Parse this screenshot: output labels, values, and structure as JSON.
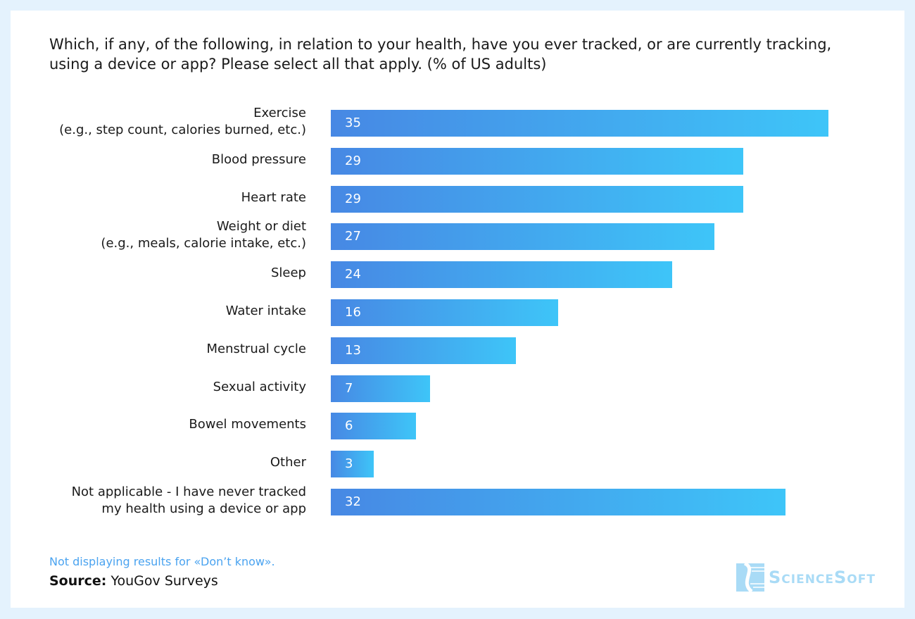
{
  "chart_data": {
    "type": "bar",
    "orientation": "horizontal",
    "title": "Which, if any, of the following, in relation to your health, have you ever tracked, or are currently tracking, using a device or app? Please select all that apply. (% of US adults)",
    "categories": [
      [
        "Exercise",
        "(e.g., step count, calories burned, etc.)"
      ],
      [
        "Blood pressure"
      ],
      [
        "Heart rate"
      ],
      [
        "Weight or diet",
        "(e.g., meals, calorie intake, etc.)"
      ],
      [
        "Sleep"
      ],
      [
        "Water intake"
      ],
      [
        "Menstrual cycle"
      ],
      [
        "Sexual activity"
      ],
      [
        "Bowel movements"
      ],
      [
        "Other"
      ],
      [
        "Not applicable - I have never tracked",
        "my health using a device or app"
      ]
    ],
    "values": [
      35,
      29,
      29,
      27,
      24,
      16,
      13,
      7,
      6,
      3,
      32
    ],
    "xlim": [
      0,
      35
    ],
    "grid": false,
    "data_labels": true,
    "colors": {
      "gradient_start": "#4788e4",
      "gradient_end": "#3ec5f8"
    }
  },
  "footer": {
    "note": "Not displaying results for «Don’t know».",
    "source_label": "Source:",
    "source_value": "YouGov Surveys"
  },
  "logo": {
    "text": "ScienceSoft",
    "color": "#a9dbf6"
  }
}
